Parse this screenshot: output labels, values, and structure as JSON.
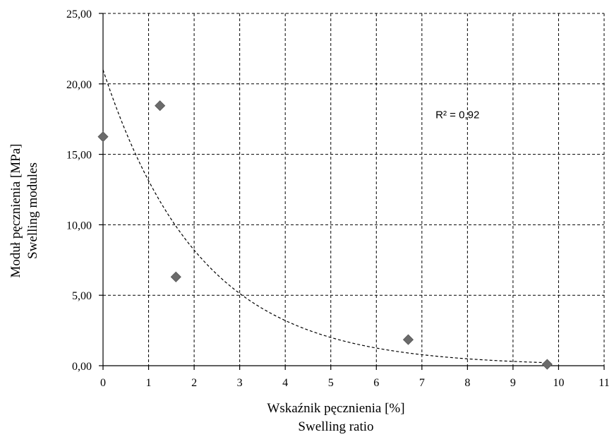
{
  "chart_data": {
    "type": "scatter",
    "xlabel_lines": [
      "Wskaźnik pęcznienia [%]",
      "Swelling ratio"
    ],
    "ylabel_lines": [
      "Moduł pęcznienia [MPa]",
      "Swelling modules"
    ],
    "xlim": [
      0,
      11
    ],
    "ylim": [
      0,
      25
    ],
    "x_ticks": [
      "0",
      "1",
      "2",
      "3",
      "4",
      "5",
      "6",
      "7",
      "8",
      "9",
      "10",
      "11"
    ],
    "y_ticks": [
      "0,00",
      "5,00",
      "10,00",
      "15,00",
      "20,00",
      "25,00"
    ],
    "grid": true,
    "series": [
      {
        "marker": "diamond",
        "color": "#6b6b6b",
        "points": [
          {
            "x": 0.0,
            "y": 16.25
          },
          {
            "x": 1.25,
            "y": 18.45
          },
          {
            "x": 1.6,
            "y": 6.3
          },
          {
            "x": 6.7,
            "y": 1.85
          },
          {
            "x": 9.75,
            "y": 0.1
          }
        ]
      }
    ],
    "trendline": {
      "type": "exponential",
      "style": "dashed",
      "a": 21.0,
      "b": -0.47,
      "x_range": [
        0,
        9.8
      ]
    },
    "annotation": {
      "text": "R² = 0,92",
      "x": 7.3,
      "y": 17.8
    }
  }
}
